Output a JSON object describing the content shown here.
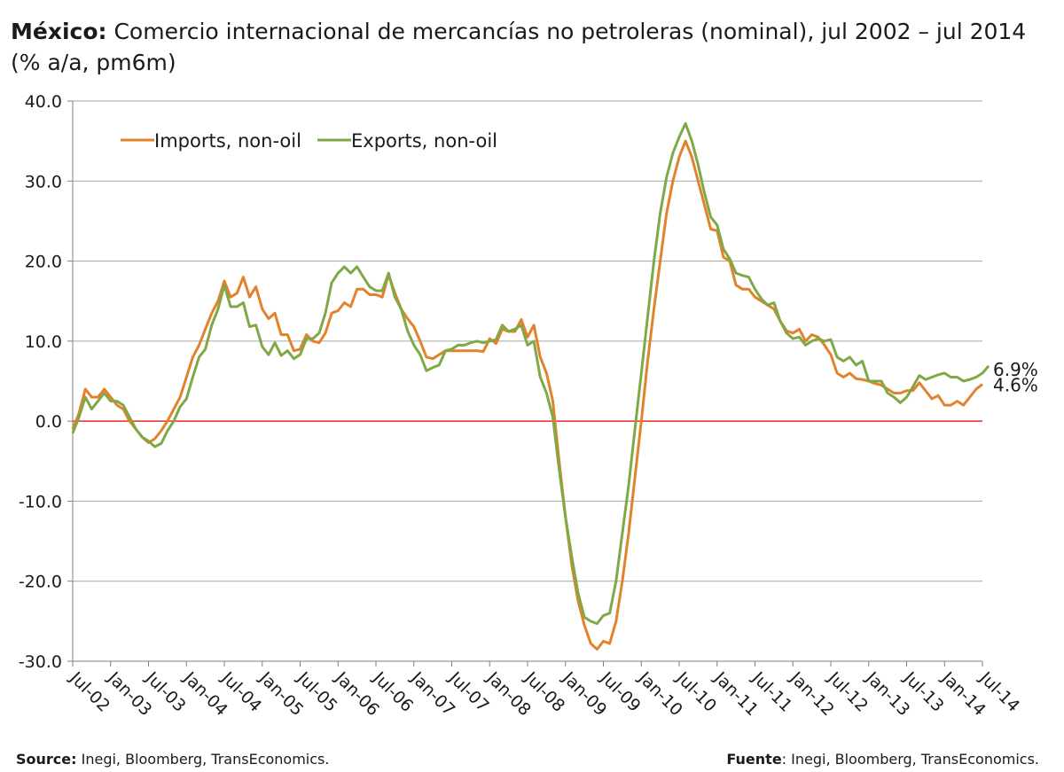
{
  "title": {
    "bold": "México:",
    "rest": " Comercio internacional de mercancías no petroleras (nominal), jul 2002 – jul 2014 (% a/a, pm6m)"
  },
  "footer": {
    "left_label": "Source:",
    "left_text": " Inegi, Bloomberg, TransEconomics.",
    "right_label": "Fuente",
    "right_text": ": Inegi, Bloomberg, TransEconomics."
  },
  "chart_data": {
    "type": "line",
    "ylim": [
      -30,
      40
    ],
    "ytick_labels": [
      "40.0",
      "30.0",
      "20.0",
      "10.0",
      "0.0",
      "-10.0",
      "-20.0",
      "-30.0"
    ],
    "xtick_labels": [
      "Jul-02",
      "Jan-03",
      "Jul-03",
      "Jan-04",
      "Jul-04",
      "Jan-05",
      "Jul-05",
      "Jan-06",
      "Jul-06",
      "Jan-07",
      "Jul-07",
      "Jan-08",
      "Jul-08",
      "Jan-09",
      "Jul-09",
      "Jan-10",
      "Jul-10",
      "Jan-11",
      "Jul-11",
      "Jan-12",
      "Jul-12",
      "Jan-13",
      "Jul-13",
      "Jan-14",
      "Jul-14"
    ],
    "grid": "horizontal",
    "zero_line_color": "#e8282b",
    "legend_position": "top-left",
    "end_labels": [
      "6.9%",
      "4.6%"
    ],
    "series": [
      {
        "name": "Imports, non-oil",
        "color": "#e3822c",
        "values": [
          -1.0,
          1.0,
          4.0,
          3.0,
          3.0,
          4.0,
          3.0,
          2.0,
          1.5,
          0.0,
          -1.0,
          -2.0,
          -2.7,
          -2.2,
          -1.2,
          0.0,
          1.5,
          3.0,
          5.5,
          8.0,
          9.5,
          11.5,
          13.5,
          15.0,
          17.5,
          15.5,
          16.0,
          18.0,
          15.5,
          16.8,
          14.0,
          12.8,
          13.5,
          10.8,
          10.8,
          8.8,
          9.0,
          10.8,
          10.0,
          9.8,
          11.0,
          13.5,
          13.8,
          14.8,
          14.3,
          16.5,
          16.5,
          15.8,
          15.8,
          15.5,
          18.3,
          16.0,
          14.0,
          12.8,
          11.8,
          10.0,
          8.0,
          7.8,
          8.3,
          8.8,
          8.8,
          8.8,
          8.8,
          8.8,
          8.8,
          8.7,
          10.3,
          9.7,
          11.5,
          11.2,
          11.2,
          12.7,
          10.5,
          12.0,
          8.0,
          6.0,
          2.5,
          -5.0,
          -12.0,
          -18.0,
          -22.5,
          -25.5,
          -27.8,
          -28.5,
          -27.5,
          -27.8,
          -25.0,
          -20.0,
          -14.0,
          -7.0,
          0.0,
          7.5,
          14.0,
          20.0,
          26.0,
          30.0,
          33.0,
          35.0,
          33.0,
          30.0,
          27.0,
          24.0,
          23.8,
          20.5,
          20.0,
          17.0,
          16.5,
          16.5,
          15.5,
          15.0,
          14.5,
          14.0,
          12.5,
          11.3,
          11.0,
          11.5,
          10.0,
          10.8,
          10.5,
          9.5,
          8.3,
          6.0,
          5.5,
          6.0,
          5.3,
          5.2,
          5.0,
          4.7,
          4.5,
          4.0,
          3.5,
          3.5,
          3.8,
          3.8,
          4.8,
          3.8,
          2.8,
          3.2,
          2.0,
          2.0,
          2.5,
          2.0,
          3.0,
          4.0,
          4.6
        ],
        "legend_label": "Imports, non-oil"
      },
      {
        "name": "Exports, non-oil",
        "color": "#7fa846",
        "values": [
          -1.5,
          0.5,
          3.0,
          1.5,
          2.5,
          3.5,
          2.5,
          2.5,
          2.0,
          0.5,
          -1.0,
          -2.0,
          -2.5,
          -3.2,
          -2.8,
          -1.2,
          0.0,
          1.8,
          2.8,
          5.5,
          8.0,
          9.0,
          12.0,
          14.0,
          17.0,
          14.3,
          14.3,
          14.8,
          11.8,
          12.0,
          9.3,
          8.3,
          9.8,
          8.2,
          8.8,
          7.8,
          8.3,
          10.3,
          10.3,
          11.0,
          13.5,
          17.3,
          18.5,
          19.3,
          18.5,
          19.3,
          18.0,
          16.8,
          16.3,
          16.3,
          18.5,
          15.5,
          14.0,
          11.3,
          9.5,
          8.3,
          6.3,
          6.7,
          7.0,
          8.8,
          9.0,
          9.5,
          9.5,
          9.8,
          10.0,
          9.8,
          10.0,
          10.2,
          12.0,
          11.2,
          11.5,
          12.0,
          9.5,
          10.0,
          5.5,
          3.5,
          0.5,
          -6.0,
          -12.0,
          -17.0,
          -21.5,
          -24.5,
          -25.0,
          -25.3,
          -24.3,
          -24.0,
          -20.0,
          -14.0,
          -8.0,
          -1.0,
          6.0,
          13.0,
          20.0,
          26.0,
          30.5,
          33.5,
          35.5,
          37.2,
          35.0,
          32.0,
          28.5,
          25.5,
          24.5,
          21.5,
          20.3,
          18.5,
          18.2,
          18.0,
          16.5,
          15.3,
          14.5,
          14.8,
          12.5,
          11.0,
          10.3,
          10.5,
          9.5,
          10.0,
          10.3,
          10.0,
          10.2,
          8.0,
          7.5,
          8.0,
          7.0,
          7.5,
          5.0,
          5.0,
          5.0,
          3.5,
          3.0,
          2.3,
          3.0,
          4.3,
          5.7,
          5.2,
          5.5,
          5.8,
          6.0,
          5.5,
          5.5,
          5.0,
          5.2,
          5.5,
          6.0,
          6.9
        ],
        "legend_label": "Exports, non-oil"
      }
    ]
  }
}
